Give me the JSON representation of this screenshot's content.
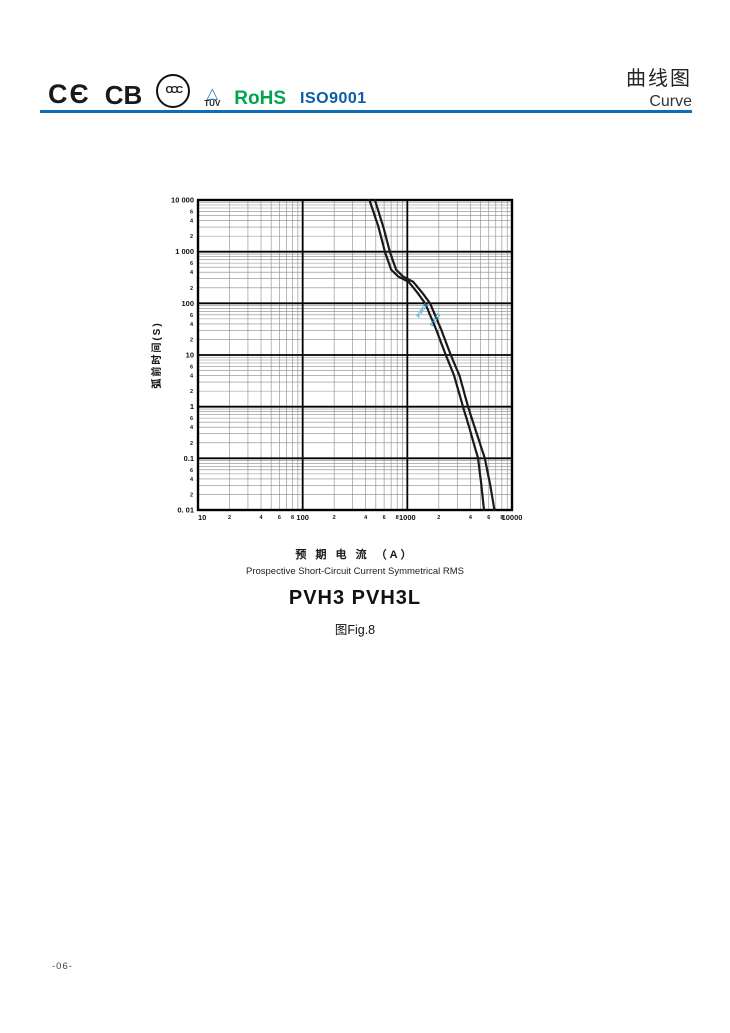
{
  "header": {
    "logos": {
      "ce": "CЄ",
      "cb": "CB",
      "ccc": "CCC",
      "tuv_triangle": "△",
      "tuv": "TÜV",
      "rohs": "RoHS",
      "iso": "ISO9001"
    },
    "title_cn": "曲线图",
    "title_en": "Curve",
    "rule_color": "#0e6db5"
  },
  "chart_data": {
    "type": "line",
    "x_scale": "log",
    "y_scale": "log",
    "x_range": [
      10,
      10000
    ],
    "y_range": [
      0.01,
      10000
    ],
    "x_decade_labels": [
      "10",
      "100",
      "1000",
      "10000"
    ],
    "y_decade_labels": [
      "10 000",
      "1 000",
      "100",
      "10",
      "1",
      "0.1",
      "0. 01"
    ],
    "x_minor_labels": [
      2,
      4,
      6,
      8
    ],
    "y_minor_labels": [
      6,
      4,
      2
    ],
    "ylabel": "弧前时间(S)",
    "xlabel_cn": "预 期 电 流 （A）",
    "xlabel_en": "Prospective Short-Circuit Current Symmetrical RMS",
    "grid": true,
    "curve_color": "#1a1a1a",
    "label_color": "#35a3dc",
    "series": [
      {
        "name": "PVH3L",
        "points": [
          [
            435,
            10000
          ],
          [
            530,
            3000
          ],
          [
            610,
            1000
          ],
          [
            700,
            450
          ],
          [
            820,
            330
          ],
          [
            1030,
            260
          ],
          [
            1250,
            160
          ],
          [
            1480,
            100
          ],
          [
            1900,
            30
          ],
          [
            2330,
            10
          ],
          [
            2800,
            4
          ],
          [
            3400,
            1
          ],
          [
            3900,
            0.4
          ],
          [
            4740,
            0.1
          ],
          [
            5100,
            0.03
          ],
          [
            5400,
            0.01
          ]
        ]
      },
      {
        "name": "PVH3",
        "points": [
          [
            490,
            10000
          ],
          [
            590,
            3000
          ],
          [
            680,
            1000
          ],
          [
            780,
            450
          ],
          [
            910,
            330
          ],
          [
            1140,
            260
          ],
          [
            1390,
            160
          ],
          [
            1650,
            100
          ],
          [
            2120,
            30
          ],
          [
            2600,
            10
          ],
          [
            3150,
            4
          ],
          [
            3800,
            1
          ],
          [
            4400,
            0.4
          ],
          [
            5500,
            0.1
          ],
          [
            6200,
            0.03
          ],
          [
            6800,
            0.01
          ]
        ]
      }
    ],
    "curve_labels": [
      {
        "text": "PVH3L",
        "x": 1300,
        "y": 52,
        "rotation": -57
      },
      {
        "text": "PVH3",
        "x": 1750,
        "y": 35,
        "rotation": -57
      }
    ]
  },
  "caption": {
    "model": "PVH3 PVH3L",
    "fig": "图Fig.8"
  },
  "footer": {
    "page": "-06-"
  }
}
